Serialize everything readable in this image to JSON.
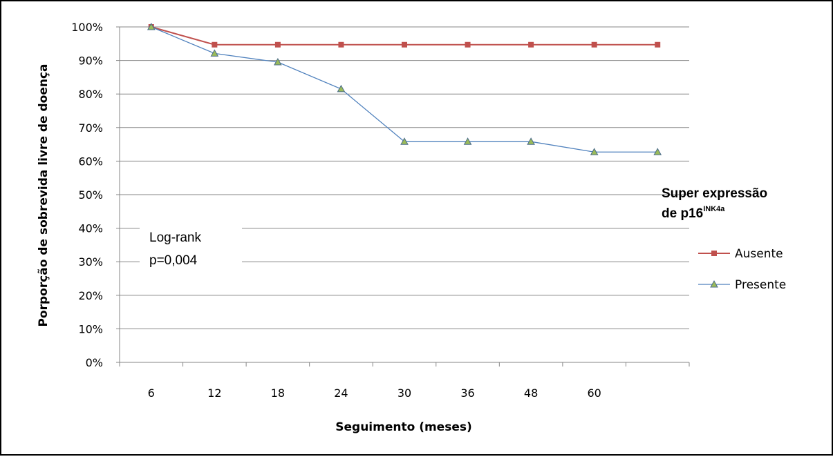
{
  "chart_data": {
    "type": "line",
    "title": "",
    "xlabel": "Seguimento (meses)",
    "ylabel": "Porporção de sobrevida livre de doença",
    "categories": [
      "6",
      "12",
      "18",
      "24",
      "30",
      "36",
      "48",
      "60",
      ""
    ],
    "y_ticks": [
      "0%",
      "10%",
      "20%",
      "30%",
      "40%",
      "50%",
      "60%",
      "70%",
      "80%",
      "90%",
      "100%"
    ],
    "ylim": [
      0,
      100
    ],
    "grid": true,
    "legend": {
      "title_main": "Super expressão",
      "title_prefix": "de p16",
      "title_superscript": "INK4a",
      "placement": "right"
    },
    "annotation": {
      "line1": "Log-rank",
      "line2": "p=0,004"
    },
    "series": [
      {
        "name": "Ausente",
        "color": "#c0504d",
        "marker": "square",
        "values": [
          100,
          94.7,
          94.7,
          94.7,
          94.7,
          94.7,
          94.7,
          94.7,
          94.7
        ]
      },
      {
        "name": "Presente",
        "color": "#4f81bd",
        "marker": "triangle",
        "values": [
          100,
          92.1,
          89.5,
          81.5,
          65.8,
          65.8,
          65.8,
          62.7,
          62.7
        ]
      }
    ]
  }
}
